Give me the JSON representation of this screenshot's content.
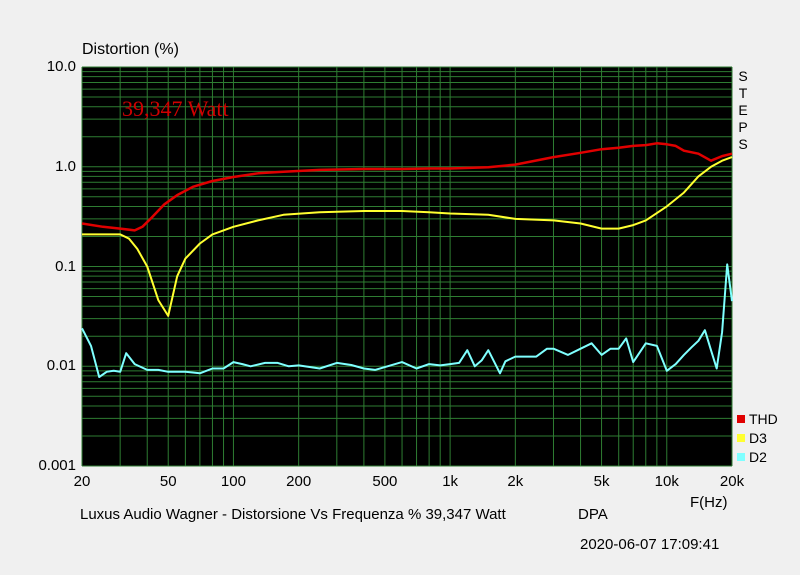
{
  "colors": {
    "background": "#f0f0f0",
    "plot": "#000000",
    "grid": "#2e7d32",
    "thd": "#e00000",
    "d3": "#ffff30",
    "d2": "#7fffff",
    "power_label": "#d00000"
  },
  "steps_label": "STEPS",
  "footer": {
    "description": "Luxus Audio Wagner - Distorsione Vs Frequenza % 39,347 Watt",
    "brand": "DPA",
    "timestamp": "2020-06-07 17:09:41"
  },
  "chart_data": {
    "type": "line",
    "title": "39,347 Watt",
    "ylabel": "Distortion (%)",
    "xlabel": "F(Hz)",
    "xscale": "log",
    "yscale": "log",
    "xlim": [
      20,
      20000
    ],
    "ylim": [
      0.001,
      10.0
    ],
    "grid": true,
    "legend_position": "right-bottom",
    "x_ticks": [
      {
        "v": 20,
        "label": "20"
      },
      {
        "v": 50,
        "label": "50"
      },
      {
        "v": 100,
        "label": "100"
      },
      {
        "v": 200,
        "label": "200"
      },
      {
        "v": 500,
        "label": "500"
      },
      {
        "v": 1000,
        "label": "1k"
      },
      {
        "v": 2000,
        "label": "2k"
      },
      {
        "v": 5000,
        "label": "5k"
      },
      {
        "v": 10000,
        "label": "10k"
      },
      {
        "v": 20000,
        "label": "20k"
      }
    ],
    "y_ticks": [
      {
        "v": 10,
        "label": "10.0"
      },
      {
        "v": 1,
        "label": "1.0"
      },
      {
        "v": 0.1,
        "label": "0.1"
      },
      {
        "v": 0.01,
        "label": "0.01"
      },
      {
        "v": 0.001,
        "label": "0.001"
      }
    ],
    "series": [
      {
        "name": "THD",
        "color": "#e00000",
        "x": [
          20,
          25,
          30,
          35,
          38,
          42,
          48,
          55,
          65,
          80,
          100,
          130,
          170,
          250,
          400,
          600,
          800,
          1000,
          1500,
          2000,
          3000,
          4000,
          5000,
          6000,
          7000,
          8000,
          9000,
          10000,
          11000,
          12000,
          14000,
          16000,
          18000,
          20000
        ],
        "y": [
          0.27,
          0.25,
          0.24,
          0.23,
          0.25,
          0.31,
          0.42,
          0.52,
          0.63,
          0.72,
          0.79,
          0.86,
          0.89,
          0.93,
          0.95,
          0.95,
          0.96,
          0.96,
          0.99,
          1.05,
          1.25,
          1.38,
          1.5,
          1.55,
          1.62,
          1.65,
          1.72,
          1.68,
          1.62,
          1.45,
          1.35,
          1.15,
          1.28,
          1.35
        ]
      },
      {
        "name": "D3",
        "color": "#ffff30",
        "x": [
          20,
          25,
          30,
          33,
          36,
          40,
          45,
          50,
          55,
          60,
          70,
          80,
          100,
          130,
          170,
          250,
          400,
          600,
          800,
          1000,
          1500,
          2000,
          3000,
          4000,
          5000,
          6000,
          7000,
          8000,
          10000,
          12000,
          14000,
          16000,
          18000,
          20000
        ],
        "y": [
          0.21,
          0.21,
          0.21,
          0.19,
          0.15,
          0.1,
          0.046,
          0.032,
          0.08,
          0.12,
          0.17,
          0.21,
          0.25,
          0.29,
          0.33,
          0.35,
          0.36,
          0.36,
          0.35,
          0.34,
          0.33,
          0.3,
          0.29,
          0.27,
          0.24,
          0.24,
          0.26,
          0.29,
          0.4,
          0.55,
          0.8,
          1.0,
          1.15,
          1.25
        ]
      },
      {
        "name": "D2",
        "color": "#7fffff",
        "x": [
          20,
          22,
          24,
          26,
          28,
          30,
          32,
          35,
          40,
          45,
          50,
          60,
          70,
          80,
          90,
          100,
          110,
          120,
          140,
          160,
          180,
          200,
          250,
          300,
          350,
          400,
          450,
          500,
          600,
          700,
          800,
          900,
          1000,
          1100,
          1200,
          1300,
          1400,
          1500,
          1700,
          1800,
          2000,
          2200,
          2500,
          2800,
          3000,
          3500,
          4000,
          4500,
          5000,
          5500,
          6000,
          6500,
          7000,
          8000,
          9000,
          10000,
          11000,
          12000,
          13000,
          14000,
          15000,
          16000,
          17000,
          18000,
          19000,
          20000
        ],
        "y": [
          0.024,
          0.016,
          0.0078,
          0.0088,
          0.009,
          0.0088,
          0.0135,
          0.0105,
          0.0092,
          0.0092,
          0.0088,
          0.0088,
          0.0085,
          0.0095,
          0.0095,
          0.011,
          0.0105,
          0.01,
          0.0108,
          0.0108,
          0.01,
          0.0102,
          0.0095,
          0.0108,
          0.0103,
          0.0095,
          0.0092,
          0.0098,
          0.011,
          0.0095,
          0.0105,
          0.0102,
          0.0105,
          0.0108,
          0.0145,
          0.01,
          0.0115,
          0.0145,
          0.0085,
          0.0112,
          0.0125,
          0.0125,
          0.0125,
          0.015,
          0.015,
          0.013,
          0.015,
          0.017,
          0.013,
          0.015,
          0.015,
          0.019,
          0.011,
          0.017,
          0.016,
          0.009,
          0.0105,
          0.013,
          0.0155,
          0.018,
          0.023,
          0.0145,
          0.0095,
          0.022,
          0.105,
          0.045
        ]
      }
    ]
  }
}
